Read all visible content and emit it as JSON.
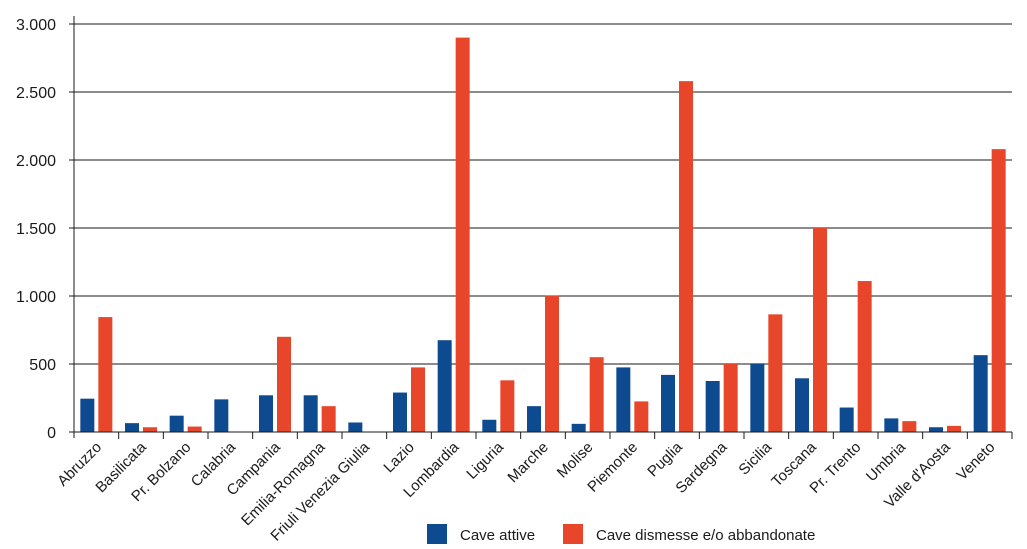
{
  "chart_data": {
    "type": "bar",
    "title": "",
    "xlabel": "",
    "ylabel": "",
    "ylim": [
      0,
      3000
    ],
    "yticks": [
      0,
      500,
      1000,
      1500,
      2000,
      2500,
      3000
    ],
    "ytick_labels": [
      "0",
      "500",
      "1.000",
      "1.500",
      "2.000",
      "2.500",
      "3.000"
    ],
    "grid": true,
    "legend_position": "bottom",
    "categories": [
      "Abruzzo",
      "Basilicata",
      "Pr. Bolzano",
      "Calabria",
      "Campania",
      "Emilia-Romagna",
      "Friuli Venezia Giulia",
      "Lazio",
      "Lombardia",
      "Liguria",
      "Marche",
      "Molise",
      "Piemonte",
      "Puglia",
      "Sardegna",
      "Sicilia",
      "Toscana",
      "Pr. Trento",
      "Umbria",
      "Valle d'Aosta",
      "Veneto"
    ],
    "series": [
      {
        "name": "Cave attive",
        "color": "#0d4a8f",
        "values": [
          245,
          65,
          120,
          240,
          270,
          270,
          70,
          290,
          675,
          90,
          190,
          60,
          475,
          420,
          375,
          505,
          395,
          180,
          100,
          35,
          565
        ]
      },
      {
        "name": "Cave dismesse e/o abbandonate",
        "color": "#e8462a",
        "values": [
          845,
          35,
          40,
          0,
          700,
          190,
          0,
          475,
          2900,
          380,
          1005,
          550,
          225,
          2580,
          500,
          865,
          1500,
          1110,
          80,
          45,
          2080
        ]
      }
    ]
  }
}
